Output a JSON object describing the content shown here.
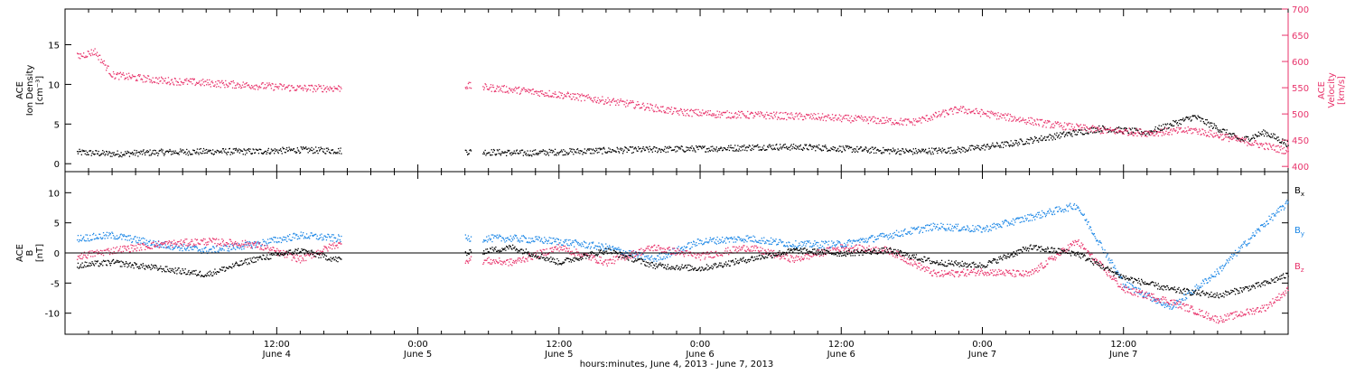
{
  "colors": {
    "black": "#000000",
    "pink": "#e8336b",
    "blue": "#1a86e6"
  },
  "chart_data": [
    {
      "type": "scatter",
      "panel": "top",
      "ylabel_left": [
        "ACE",
        "Ion Density",
        "[cm⁻³]"
      ],
      "ylabel_right": [
        "ACE",
        "Velocity",
        "[km/s]"
      ],
      "xlim": [
        -18,
        86
      ],
      "ylim_left": [
        -1,
        19.5
      ],
      "ylim_right": [
        390,
        700
      ],
      "yticks_left": [
        0,
        5,
        10,
        15
      ],
      "yticks_right": [
        400,
        450,
        500,
        550,
        600,
        650,
        700
      ],
      "grid": false,
      "series": [
        {
          "name": "Ion Density",
          "color_key": "black",
          "axis": "left",
          "x": [
            -17.0,
            -14,
            -10,
            -6,
            -2,
            2,
            5,
            16,
            21,
            25,
            30,
            34,
            38,
            42,
            46,
            50,
            54,
            58,
            62,
            66,
            70,
            74,
            78,
            82,
            84,
            86
          ],
          "y": [
            1.5,
            1.3,
            1.5,
            1.6,
            1.6,
            1.8,
            1.7,
            1.6,
            1.4,
            1.6,
            1.8,
            1.9,
            2.0,
            2.2,
            2.1,
            1.8,
            1.6,
            1.8,
            2.5,
            3.5,
            4.5,
            4.0,
            6.0,
            3.0,
            4.0,
            2.5
          ]
        },
        {
          "name": "Velocity",
          "color_key": "pink",
          "axis": "right",
          "x": [
            -17.0,
            -15.5,
            -14,
            -10,
            -6,
            -2,
            2,
            5,
            16,
            21,
            25,
            30,
            34,
            38,
            42,
            46,
            50,
            54,
            58,
            62,
            66,
            70,
            74,
            78,
            82,
            84,
            86
          ],
          "y": [
            610,
            620,
            575,
            565,
            560,
            555,
            550,
            550,
            555,
            545,
            535,
            520,
            505,
            500,
            498,
            495,
            490,
            485,
            510,
            495,
            480,
            470,
            465,
            470,
            450,
            440,
            430
          ]
        }
      ]
    },
    {
      "type": "scatter",
      "panel": "bottom",
      "ylabel_left": [
        "ACE",
        "B",
        "[nT]"
      ],
      "xlim": [
        -18,
        86
      ],
      "ylim": [
        -13.5,
        13.5
      ],
      "yticks": [
        -10,
        -5,
        0,
        5,
        10
      ],
      "zero_line": true,
      "grid": false,
      "legend_position": "right",
      "legend": [
        "Bx",
        "By",
        "Bz"
      ],
      "series": [
        {
          "name": "Bx",
          "color_key": "black",
          "x": [
            -17.0,
            -14,
            -10,
            -6,
            -2,
            2,
            5,
            16,
            20,
            24,
            28,
            32,
            36,
            40,
            44,
            48,
            52,
            56,
            60,
            64,
            68,
            72,
            76,
            80,
            84,
            86
          ],
          "y": [
            -2,
            -1.5,
            -2.5,
            -3.5,
            -1,
            0.5,
            -1,
            0,
            1,
            -1.5,
            0.5,
            -2,
            -2.5,
            -1,
            0.5,
            0,
            0.5,
            -1.5,
            -2,
            1,
            0,
            -4,
            -6,
            -7,
            -5,
            -3.5
          ]
        },
        {
          "name": "By",
          "color_key": "blue",
          "x": [
            -17.0,
            -14,
            -10,
            -6,
            -2,
            2,
            5,
            16,
            20,
            24,
            28,
            32,
            36,
            40,
            44,
            48,
            52,
            56,
            60,
            64,
            68,
            72,
            76,
            80,
            84,
            86
          ],
          "y": [
            2.5,
            3,
            1.5,
            0.5,
            1.5,
            3,
            2.5,
            2.5,
            2.5,
            2,
            1,
            -1,
            2,
            2.5,
            1.5,
            1.5,
            3,
            4.5,
            4,
            6,
            8,
            -5,
            -9,
            -3,
            5,
            8.5
          ]
        },
        {
          "name": "Bz",
          "color_key": "pink",
          "x": [
            -17.0,
            -14,
            -10,
            -6,
            -2,
            2,
            5,
            16,
            20,
            24,
            28,
            32,
            36,
            40,
            44,
            48,
            52,
            56,
            60,
            64,
            68,
            72,
            76,
            80,
            84,
            86
          ],
          "y": [
            -0.5,
            0.5,
            1.5,
            2,
            1.5,
            -1,
            1.5,
            -1,
            -1.5,
            1,
            -1.5,
            1,
            -0.5,
            1,
            -1,
            1,
            0.5,
            -3.5,
            -3,
            -3.5,
            2,
            -6,
            -8,
            -11,
            -9,
            -6
          ]
        }
      ]
    }
  ],
  "x_axis": {
    "ticks": [
      {
        "time": "12:00",
        "date": "June 4"
      },
      {
        "time": "0:00",
        "date": "June 5"
      },
      {
        "time": "12:00",
        "date": "June 5"
      },
      {
        "time": "0:00",
        "date": "June 6"
      },
      {
        "time": "12:00",
        "date": "June 6"
      },
      {
        "time": "0:00",
        "date": "June 7"
      },
      {
        "time": "12:00",
        "date": "June 7"
      }
    ],
    "label": "hours:minutes, June  4, 2013 - June  7, 2013"
  }
}
